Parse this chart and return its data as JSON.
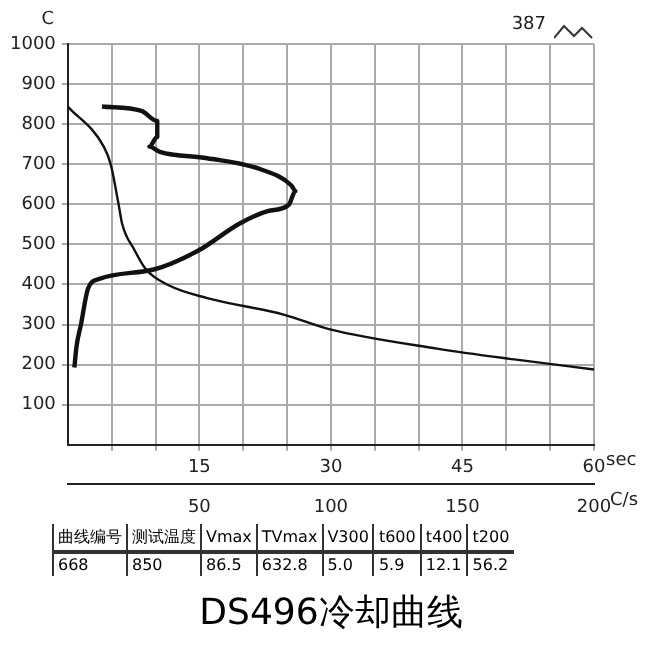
{
  "chart_data": {
    "type": "line",
    "title": "DS496冷却曲线",
    "ylabel": "C",
    "xlabel": "C/s",
    "x2label": "sec",
    "xlim": [
      0,
      200
    ],
    "xticks": [
      50,
      100,
      150,
      200
    ],
    "x2lim": [
      0,
      60
    ],
    "x2ticks": [
      {
        "value": 5,
        "label": null
      },
      {
        "value": 10,
        "label": null
      },
      15,
      {
        "value": 20,
        "label": null
      },
      {
        "value": 25,
        "label": null
      },
      30,
      {
        "value": 35,
        "label": null
      },
      {
        "value": 40,
        "label": null
      },
      45,
      {
        "value": 50,
        "label": null
      },
      {
        "value": 55,
        "label": null
      },
      60
    ],
    "ylim": [
      0,
      1000
    ],
    "yticks": [
      100,
      200,
      300,
      400,
      500,
      600,
      700,
      800,
      900,
      1000
    ],
    "grid": true,
    "legend": false,
    "marker": "none",
    "line_style": "solid",
    "series": [
      {
        "color": "#111111",
        "axis": "x2",
        "x": [
          0,
          4.1,
          4.9,
          5.8,
          6.2,
          7.6,
          8.9,
          11.5,
          15.9,
          24.6,
          29.9,
          42.1,
          50.9,
          60
        ],
        "values": [
          844,
          744,
          699,
          599,
          551,
          486,
          438,
          398,
          366,
          325,
          288,
          240,
          213,
          188
        ]
      },
      {
        "color": "#111111",
        "x": [
          13,
          28,
          34,
          34,
          31,
          35,
          53,
          73,
          85,
          86.5,
          84,
          76,
          65,
          50,
          33,
          12,
          7.7,
          5,
          3.3,
          2.5
        ],
        "values": [
          844,
          833,
          808,
          768,
          744,
          731,
          715,
          688,
          647,
          633,
          599,
          583,
          551,
          486,
          438,
          414,
          390,
          300,
          245,
          193
        ]
      }
    ],
    "annotations": [
      "387",
      "曲线编号",
      "测试温度",
      "Vmax",
      "TVmax",
      "V300",
      "t600",
      "t400",
      "t200",
      "668",
      "850",
      "86.5",
      "632.8",
      "5.0",
      "5.9",
      "12.1",
      "56.2"
    ]
  }
}
